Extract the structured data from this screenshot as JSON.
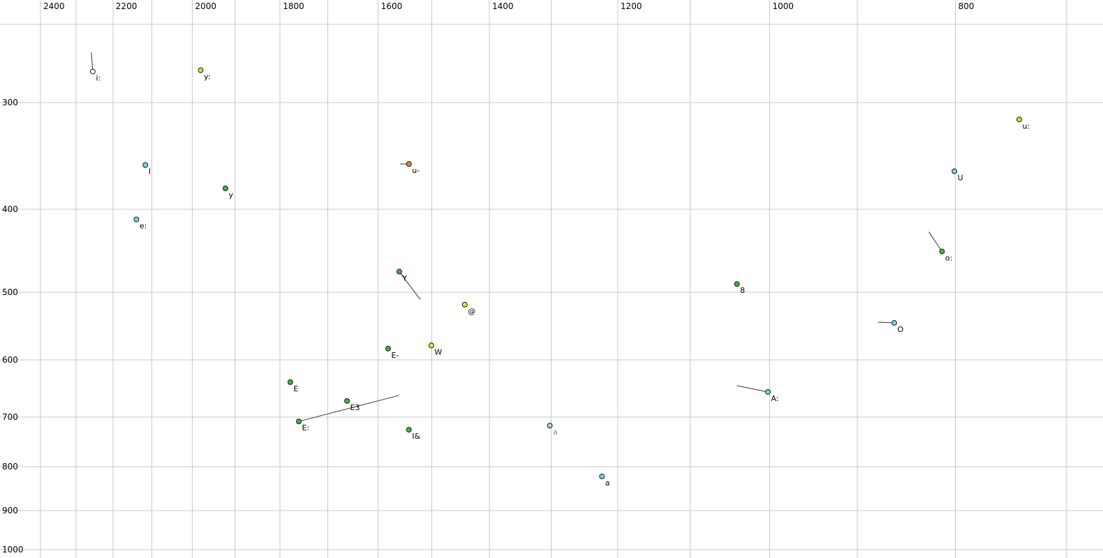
{
  "chart_data": {
    "type": "scatter",
    "title": "",
    "xlabel": "",
    "ylabel": "",
    "x_axis": {
      "orientation": "top",
      "scale": "log",
      "reversed": true,
      "range": [
        2400,
        700
      ],
      "ticks": [
        2400,
        2200,
        2000,
        1800,
        1600,
        1400,
        1200,
        1000,
        800
      ],
      "gridlines": [
        2400,
        2300,
        2200,
        2100,
        2000,
        1900,
        1800,
        1700,
        1600,
        1500,
        1400,
        1300,
        1200,
        1100,
        1000,
        900,
        800,
        700
      ]
    },
    "y_axis": {
      "orientation": "left",
      "scale": "log",
      "reversed": true,
      "range": [
        240,
        1020
      ],
      "ticks": [
        300,
        400,
        500,
        600,
        700,
        800,
        900,
        1000
      ],
      "gridlines": [
        300,
        400,
        500,
        600,
        700,
        800,
        900,
        1000
      ]
    },
    "points": [
      {
        "label": "i:",
        "f2": 2254,
        "f1": 276,
        "color": "white",
        "tail": {
          "f2": 2258,
          "f1": 262
        }
      },
      {
        "label": "y:",
        "f2": 1980,
        "f1": 275,
        "color": "yellow_green"
      },
      {
        "label": "u:",
        "f2": 741,
        "f1": 314,
        "color": "yellow_green"
      },
      {
        "label": "I",
        "f2": 2116,
        "f1": 355,
        "color": "cyan"
      },
      {
        "label": "u-",
        "f2": 1542,
        "f1": 354,
        "color": "orange",
        "tail": {
          "f2": 1558,
          "f1": 354
        }
      },
      {
        "label": "U",
        "f2": 801,
        "f1": 361,
        "color": "cyan"
      },
      {
        "label": "y",
        "f2": 1922,
        "f1": 378,
        "color": "green"
      },
      {
        "label": "e:",
        "f2": 2139,
        "f1": 411,
        "color": "cyan"
      },
      {
        "label": "o:",
        "f2": 813,
        "f1": 448,
        "color": "green",
        "tail": {
          "f2": 826,
          "f1": 425
        }
      },
      {
        "label": "Y",
        "f2": 1560,
        "f1": 473,
        "color": "green",
        "tail": {
          "f2": 1521,
          "f1": 510
        }
      },
      {
        "label": "8",
        "f2": 1040,
        "f1": 489,
        "color": "green"
      },
      {
        "label": "@",
        "f2": 1442,
        "f1": 517,
        "color": "yellow"
      },
      {
        "label": "O",
        "f2": 861,
        "f1": 543,
        "color": "cyan",
        "tail": {
          "f2": 878,
          "f1": 542
        }
      },
      {
        "label": "W",
        "f2": 1501,
        "f1": 577,
        "color": "yellow"
      },
      {
        "label": "E-",
        "f2": 1581,
        "f1": 582,
        "color": "green"
      },
      {
        "label": "E",
        "f2": 1778,
        "f1": 637,
        "color": "green"
      },
      {
        "label": "A:",
        "f2": 1002,
        "f1": 654,
        "color": "cyan",
        "tail": {
          "f2": 1040,
          "f1": 643
        }
      },
      {
        "label": "E3",
        "f2": 1661,
        "f1": 670,
        "color": "green"
      },
      {
        "label": "E:",
        "f2": 1760,
        "f1": 708,
        "color": "green",
        "tail": {
          "f2": 1560,
          "f1": 660
        }
      },
      {
        "label": "I&",
        "f2": 1542,
        "f1": 724,
        "color": "green"
      },
      {
        "label": "a",
        "f2": 1302,
        "f1": 716,
        "color": "pale_green",
        "dim": true
      },
      {
        "label": "a",
        "f2": 1223,
        "f1": 821,
        "color": "cyan"
      }
    ]
  },
  "colors": {
    "cyan": "#74d6e6",
    "green": "#3cb44b",
    "pale_green": "#a2dcaa",
    "yellow": "#efe32e",
    "yellow_green": "#cfe02e",
    "orange": "#ee8321",
    "white": "#ffffff",
    "grid": "#c9c9c9",
    "point_outline": "#1a1a1a",
    "tail_line": "#333333"
  }
}
